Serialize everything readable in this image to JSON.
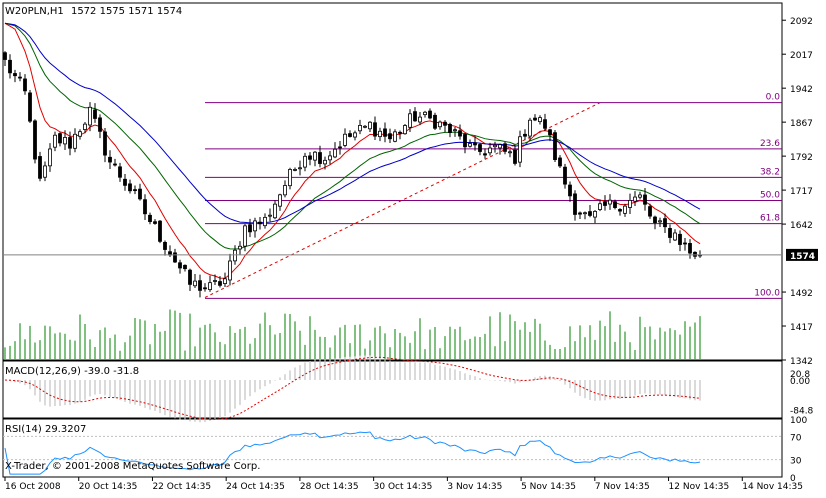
{
  "header": {
    "symbol": "W20PLN,H1",
    "ohlc": "1572 1575 1571 1574"
  },
  "colors": {
    "background": "#ffffff",
    "bull": "#000000",
    "bear": "#000000",
    "ma_fast": "#e00000",
    "ma_mid": "#006400",
    "ma_slow": "#0000c8",
    "fib": "#800080",
    "trend": "#e00000",
    "volume": "#008000",
    "macd_hist": "#c0c0c0",
    "macd_signal": "#e00000",
    "rsi": "#1e90ff",
    "price_box": "#000000"
  },
  "chart_data": [
    {
      "type": "candlestick",
      "title": "W20PLN,H1",
      "ylim": [
        1342,
        2130
      ],
      "y_ticks": [
        "2092",
        "2017",
        "1942",
        "1867",
        "1792",
        "1717",
        "1642",
        "1492",
        "1417",
        "1342"
      ],
      "current_price": "1574",
      "x_ticks": [
        "16 Oct 2008",
        "20 Oct 14:35",
        "22 Oct 14:35",
        "24 Oct 14:35",
        "28 Oct 14:35",
        "30 Oct 14:35",
        "3 Nov 14:35",
        "5 Nov 14:35",
        "7 Nov 14:35",
        "12 Nov 14:35",
        "14 Nov 14:35"
      ],
      "bar_count": 140,
      "close_path_points": [
        {
          "bar": 0,
          "price": 2000
        },
        {
          "bar": 4,
          "price": 1930
        },
        {
          "bar": 7,
          "price": 1730
        },
        {
          "bar": 10,
          "price": 1830
        },
        {
          "bar": 13,
          "price": 1820
        },
        {
          "bar": 17,
          "price": 1890
        },
        {
          "bar": 21,
          "price": 1780
        },
        {
          "bar": 25,
          "price": 1720
        },
        {
          "bar": 29,
          "price": 1650
        },
        {
          "bar": 33,
          "price": 1580
        },
        {
          "bar": 37,
          "price": 1510
        },
        {
          "bar": 41,
          "price": 1500
        },
        {
          "bar": 44,
          "price": 1520
        },
        {
          "bar": 48,
          "price": 1635
        },
        {
          "bar": 52,
          "price": 1650
        },
        {
          "bar": 56,
          "price": 1730
        },
        {
          "bar": 60,
          "price": 1800
        },
        {
          "bar": 64,
          "price": 1790
        },
        {
          "bar": 68,
          "price": 1830
        },
        {
          "bar": 73,
          "price": 1860
        },
        {
          "bar": 77,
          "price": 1830
        },
        {
          "bar": 82,
          "price": 1880
        },
        {
          "bar": 86,
          "price": 1870
        },
        {
          "bar": 90,
          "price": 1840
        },
        {
          "bar": 94,
          "price": 1800
        },
        {
          "bar": 98,
          "price": 1810
        },
        {
          "bar": 102,
          "price": 1790
        },
        {
          "bar": 105,
          "price": 1880
        },
        {
          "bar": 108,
          "price": 1860
        },
        {
          "bar": 111,
          "price": 1760
        },
        {
          "bar": 114,
          "price": 1680
        },
        {
          "bar": 117,
          "price": 1650
        },
        {
          "bar": 120,
          "price": 1680
        },
        {
          "bar": 124,
          "price": 1690
        },
        {
          "bar": 127,
          "price": 1700
        },
        {
          "bar": 130,
          "price": 1640
        },
        {
          "bar": 134,
          "price": 1620
        },
        {
          "bar": 137,
          "price": 1580
        },
        {
          "bar": 139,
          "price": 1574
        }
      ],
      "ma_periods": [
        8,
        21,
        34
      ],
      "fibonacci": {
        "high": 1910,
        "low": 1478,
        "levels": [
          {
            "label": "0.0",
            "ratio": 0.0
          },
          {
            "label": "23.6",
            "ratio": 0.236
          },
          {
            "label": "38.2",
            "ratio": 0.382
          },
          {
            "label": "50.0",
            "ratio": 0.5
          },
          {
            "label": "61.8",
            "ratio": 0.618
          },
          {
            "label": "100.0",
            "ratio": 1.0
          }
        ]
      },
      "trendline": {
        "from": {
          "bar": 40,
          "price": 1480
        },
        "to": {
          "bar": 119,
          "price": 1910
        }
      },
      "volume": {
        "max_price_units": 80
      }
    },
    {
      "type": "macd",
      "title": "MACD(12,26,9) -39.0 -31.8",
      "ylim": [
        -110,
        55
      ],
      "y_ticks": [
        "20.8",
        "0.00",
        "-84.8"
      ]
    },
    {
      "type": "rsi",
      "title": "RSI(14) 29.3207",
      "ylim": [
        0,
        100
      ],
      "y_ticks": [
        "100",
        "70",
        "30",
        "0"
      ]
    }
  ],
  "footer": {
    "copyright": "X-Trader, © 2001-2008 MetaQuotes Software Corp."
  }
}
